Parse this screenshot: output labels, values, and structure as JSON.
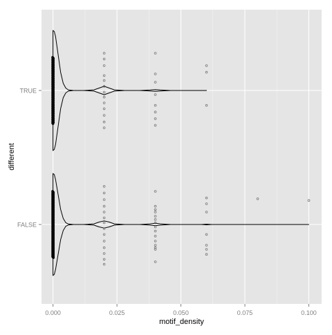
{
  "chart_data": {
    "type": "violin",
    "orientation": "horizontal",
    "xlabel": "motif_density",
    "ylabel": "different",
    "xlim": [
      -0.0045,
      0.105
    ],
    "x_ticks": [
      0.0,
      0.025,
      0.05,
      0.075,
      0.1
    ],
    "x_tick_labels": [
      "0.000",
      "0.025",
      "0.050",
      "0.075",
      "0.100"
    ],
    "categories": [
      "TRUE",
      "FALSE"
    ],
    "grid": true,
    "panel_background": "#e5e5e5",
    "grid_major_color": "#ffffff",
    "grid_minor_color": "#f2f2f2",
    "groups": [
      {
        "name": "TRUE",
        "violin": {
          "x": [
            0.0,
            0.0005,
            0.001,
            0.002,
            0.003,
            0.004,
            0.005,
            0.006,
            0.008,
            0.012,
            0.016,
            0.018,
            0.02,
            0.022,
            0.024,
            0.028,
            0.034,
            0.038,
            0.04,
            0.042,
            0.046,
            0.052,
            0.058,
            0.06
          ],
          "density": [
            1.0,
            0.98,
            0.9,
            0.6,
            0.3,
            0.12,
            0.04,
            0.01,
            0.0,
            0.0,
            0.01,
            0.04,
            0.07,
            0.04,
            0.01,
            0.0,
            0.0,
            0.008,
            0.015,
            0.008,
            0.0,
            0.0,
            0.0,
            0.0
          ]
        },
        "points": [
          {
            "x": 0.02,
            "jitter": [
              0.45,
              0.38,
              0.3,
              0.22,
              0.15,
              0.08,
              0.02,
              -0.05,
              -0.12,
              -0.18,
              -0.3,
              -0.38,
              -0.45
            ]
          },
          {
            "x": 0.04,
            "jitter": [
              0.42,
              0.34,
              0.26,
              0.18,
              0.05,
              -0.1,
              -0.2,
              -0.45
            ]
          },
          {
            "x": 0.06,
            "jitter": [
              0.18,
              -0.22,
              -0.3
            ]
          }
        ],
        "zero_points_count": 110
      },
      {
        "name": "FALSE",
        "violin": {
          "x": [
            0.0,
            0.0005,
            0.001,
            0.002,
            0.003,
            0.004,
            0.005,
            0.006,
            0.008,
            0.012,
            0.016,
            0.018,
            0.02,
            0.022,
            0.024,
            0.028,
            0.034,
            0.038,
            0.04,
            0.042,
            0.046,
            0.052,
            0.058,
            0.06,
            0.062,
            0.066,
            0.07,
            0.08,
            0.09,
            0.1
          ],
          "density": [
            0.85,
            0.83,
            0.75,
            0.5,
            0.25,
            0.1,
            0.03,
            0.008,
            0.0,
            0.0,
            0.01,
            0.04,
            0.06,
            0.04,
            0.01,
            0.0,
            0.0,
            0.01,
            0.02,
            0.01,
            0.0,
            0.0,
            0.0,
            0.006,
            0.0,
            0.0,
            0.0,
            0.0,
            0.0,
            0.0
          ]
        },
        "points": [
          {
            "x": 0.02,
            "jitter": [
              0.48,
              0.42,
              0.35,
              0.28,
              0.2,
              0.12,
              0.05,
              -0.02,
              -0.08,
              -0.15,
              -0.22,
              -0.3,
              -0.38,
              -0.46
            ]
          },
          {
            "x": 0.04,
            "jitter": [
              0.45,
              0.3,
              0.28,
              0.25,
              0.2,
              0.14,
              0.08,
              0.03,
              -0.02,
              -0.06,
              -0.1,
              -0.15,
              -0.18,
              -0.22,
              -0.4
            ]
          },
          {
            "x": 0.06,
            "jitter": [
              0.36,
              0.3,
              0.25,
              0.12,
              -0.15,
              -0.25,
              -0.32
            ]
          },
          {
            "x": 0.08,
            "jitter": [
              -0.31
            ]
          },
          {
            "x": 0.1,
            "jitter": [
              -0.29
            ]
          }
        ],
        "zero_points_count": 120
      }
    ]
  }
}
